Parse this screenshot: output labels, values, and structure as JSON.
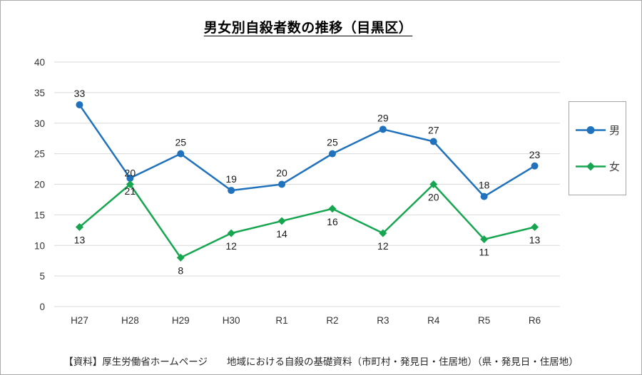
{
  "chart_data": {
    "type": "line",
    "title": "男女別自殺者数の推移（目黒区）",
    "categories": [
      "H27",
      "H28",
      "H29",
      "H30",
      "R1",
      "R2",
      "R3",
      "R4",
      "R5",
      "R6"
    ],
    "series": [
      {
        "name": "男",
        "color": "#2072bc",
        "marker": "circle",
        "values": [
          33,
          21,
          25,
          19,
          20,
          25,
          29,
          27,
          18,
          23
        ],
        "label_positions": [
          "above",
          "below",
          "above",
          "above",
          "above",
          "above",
          "above",
          "above",
          "above",
          "above"
        ]
      },
      {
        "name": "女",
        "color": "#17a650",
        "marker": "diamond",
        "values": [
          13,
          20,
          8,
          12,
          14,
          16,
          12,
          20,
          11,
          13
        ],
        "label_positions": [
          "below",
          "above",
          "below",
          "below",
          "below",
          "below",
          "below",
          "below",
          "below",
          "below"
        ]
      }
    ],
    "ylim": [
      0,
      40
    ],
    "ytick_step": 5,
    "grid": true,
    "legend_position": "right"
  },
  "source_text": "【資料】厚生労働省ホームページ　　地域における自殺の基礎資料（市町村・発見日・住居地）（県・発見日・住居地）",
  "colors": {
    "grid": "#d9d9d9",
    "axis": "#d9d9d9",
    "tick_text": "#333333",
    "data_label_text": "#1a1a1a",
    "legend_border": "#a6a6a6"
  }
}
